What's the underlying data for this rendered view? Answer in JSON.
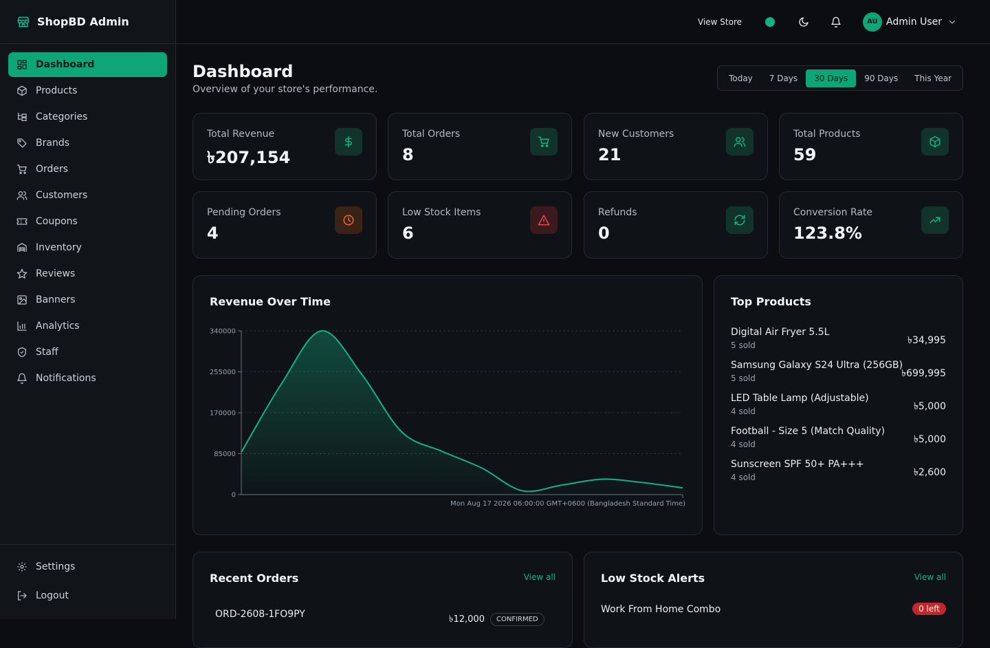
{
  "app": {
    "brand": "ShopBD Admin",
    "accent": "#0ea676"
  },
  "sidebar": {
    "items": [
      {
        "label": "Dashboard",
        "icon": "dashboard-icon",
        "active": true
      },
      {
        "label": "Products",
        "icon": "package-icon"
      },
      {
        "label": "Categories",
        "icon": "category-tree-icon"
      },
      {
        "label": "Brands",
        "icon": "tag-icon"
      },
      {
        "label": "Orders",
        "icon": "cart-icon"
      },
      {
        "label": "Customers",
        "icon": "users-icon"
      },
      {
        "label": "Coupons",
        "icon": "ticket-icon"
      },
      {
        "label": "Inventory",
        "icon": "warehouse-icon"
      },
      {
        "label": "Reviews",
        "icon": "star-icon"
      },
      {
        "label": "Banners",
        "icon": "image-icon"
      },
      {
        "label": "Analytics",
        "icon": "bar-chart-icon"
      },
      {
        "label": "Staff",
        "icon": "shield-icon"
      },
      {
        "label": "Notifications",
        "icon": "bell-icon"
      }
    ],
    "bottom": [
      {
        "label": "Settings",
        "icon": "gear-icon"
      },
      {
        "label": "Logout",
        "icon": "logout-icon"
      }
    ]
  },
  "header": {
    "view_store": "View Store",
    "user_initials": "AU",
    "user_name": "Admin User"
  },
  "page": {
    "title": "Dashboard",
    "subtitle": "Overview of your store's performance.",
    "ranges": [
      "Today",
      "7 Days",
      "30 Days",
      "90 Days",
      "This Year"
    ],
    "active_range": "30 Days"
  },
  "stats": [
    {
      "label": "Total Revenue",
      "value": "৳207,154",
      "icon": "dollar-icon",
      "tone": "green"
    },
    {
      "label": "Total Orders",
      "value": "8",
      "icon": "cart-icon",
      "tone": "green"
    },
    {
      "label": "New Customers",
      "value": "21",
      "icon": "users-icon",
      "tone": "green"
    },
    {
      "label": "Total Products",
      "value": "59",
      "icon": "package-icon",
      "tone": "green"
    },
    {
      "label": "Pending Orders",
      "value": "4",
      "icon": "clock-icon",
      "tone": "orange"
    },
    {
      "label": "Low Stock Items",
      "value": "6",
      "icon": "warning-icon",
      "tone": "red"
    },
    {
      "label": "Refunds",
      "value": "0",
      "icon": "refresh-icon",
      "tone": "green"
    },
    {
      "label": "Conversion Rate",
      "value": "123.8%",
      "icon": "trending-up-icon",
      "tone": "green"
    }
  ],
  "revenue_card": {
    "title": "Revenue Over Time"
  },
  "chart_data": {
    "type": "area",
    "title": "Revenue Over Time",
    "x_tick_labels": [
      "Mon Aug 17 2026 06:00:00 GMT+0600 (Bangladesh Standard Time)"
    ],
    "x": [
      0,
      1,
      2,
      3,
      4,
      5,
      6,
      7,
      8,
      9,
      10,
      11
    ],
    "series": [
      {
        "values": [
          88000,
          230000,
          340000,
          250000,
          130000,
          90000,
          55000,
          8000,
          20000,
          32000,
          25000,
          14000
        ]
      }
    ],
    "ylim": [
      0,
      340000
    ],
    "y_ticks": [
      "0",
      "85000",
      "170000",
      "255000",
      "340000"
    ],
    "grid": true,
    "color": "#14b386"
  },
  "top_products": {
    "title": "Top Products",
    "items": [
      {
        "name": "Digital Air Fryer 5.5L",
        "sold": "5 sold",
        "price": "৳34,995"
      },
      {
        "name": "Samsung Galaxy S24 Ultra (256GB)",
        "sold": "5 sold",
        "price": "৳699,995"
      },
      {
        "name": "LED Table Lamp (Adjustable)",
        "sold": "4 sold",
        "price": "৳5,000"
      },
      {
        "name": "Football - Size 5 (Match Quality)",
        "sold": "4 sold",
        "price": "৳5,000"
      },
      {
        "name": "Sunscreen SPF 50+ PA+++",
        "sold": "4 sold",
        "price": "৳2,600"
      }
    ]
  },
  "recent_orders": {
    "title": "Recent Orders",
    "view_all": "View all",
    "rows": [
      {
        "id": "ORD-2608-1FO9PY",
        "amount": "৳12,000",
        "status": "CONFIRMED"
      }
    ]
  },
  "low_stock": {
    "title": "Low Stock Alerts",
    "view_all": "View all",
    "items": [
      {
        "name": "Work From Home Combo",
        "badge": "0 left"
      }
    ]
  }
}
